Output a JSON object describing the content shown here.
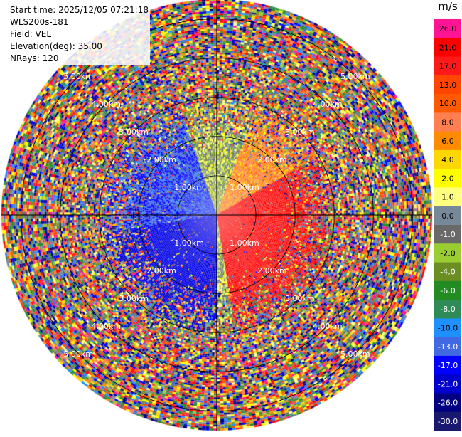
{
  "info": {
    "start_time": "Start time: 2025/12/05 07:21:18",
    "instrument": "WLS200s-181",
    "field": "Field: VEL",
    "elevation": "Elevation(deg): 35.00",
    "nrays": "NRays: 120"
  },
  "colorbar": {
    "unit": "m/s",
    "levels": [
      {
        "label": "26.0",
        "color": "#ff1493"
      },
      {
        "label": "21.0",
        "color": "#ff0000"
      },
      {
        "label": "17.0",
        "color": "#ff1a1a"
      },
      {
        "label": "13.0",
        "color": "#ff4500"
      },
      {
        "label": "10.0",
        "color": "#ff5a00"
      },
      {
        "label": "8.0",
        "color": "#ff7f50"
      },
      {
        "label": "6.0",
        "color": "#ff8c00"
      },
      {
        "label": "4.0",
        "color": "#ffd700"
      },
      {
        "label": "2.0",
        "color": "#ffff00"
      },
      {
        "label": "1.0",
        "color": "#ffff80"
      },
      {
        "label": "0.0",
        "color": "#778899"
      },
      {
        "label": "-1.0",
        "color": "#696969"
      },
      {
        "label": "-2.0",
        "color": "#9acd32"
      },
      {
        "label": "-4.0",
        "color": "#6b8e23"
      },
      {
        "label": "-6.0",
        "color": "#228b22"
      },
      {
        "label": "-8.0",
        "color": "#2e8b57"
      },
      {
        "label": "-10.0",
        "color": "#1e90ff"
      },
      {
        "label": "-13.0",
        "color": "#4169e1"
      },
      {
        "label": "-17.0",
        "color": "#0000ff"
      },
      {
        "label": "-21.0",
        "color": "#0000cd"
      },
      {
        "label": "-26.0",
        "color": "#000080"
      },
      {
        "label": "-30.0",
        "color": "#191970"
      }
    ]
  },
  "chart_data": {
    "type": "heatmap",
    "projection": "polar PPI",
    "field": "VEL",
    "units": "m/s",
    "rays": 120,
    "elevation_deg": 35.0,
    "range_ring_labels_km": [
      "1.00km",
      "2.00km",
      "3.00km",
      "4.00km",
      "5.00km"
    ],
    "range_rings_km": [
      1,
      2,
      3,
      4,
      5
    ],
    "max_range_km": 5.5,
    "pattern": {
      "near_range_km": 3.0,
      "approaching_sector": {
        "azimuth_from_deg": 180,
        "azimuth_to_deg": 340,
        "typical_velocity": -17
      },
      "receding_sector": {
        "azimuth_from_deg": 20,
        "azimuth_to_deg": 170,
        "typical_velocity": 21
      },
      "far_field": "noise"
    }
  }
}
